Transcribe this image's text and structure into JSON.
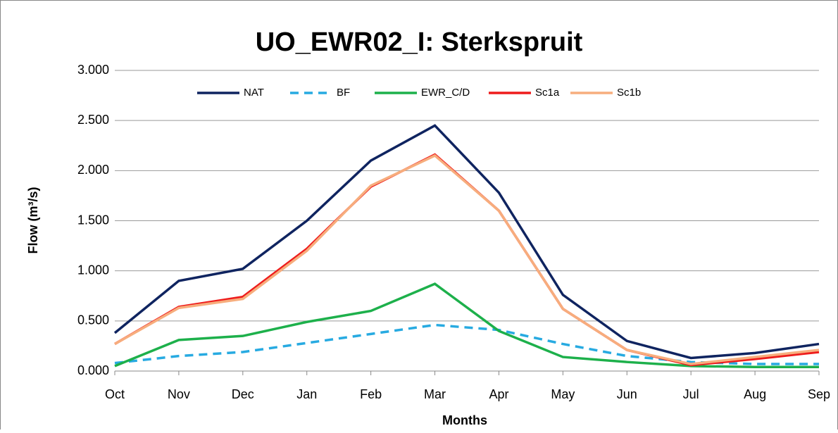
{
  "chart_data": {
    "type": "line",
    "title": "UO_EWR02_I: Sterkspruit",
    "x_label": "Months",
    "y_label": "Flow (m³/s)",
    "categories": [
      "Oct",
      "Nov",
      "Dec",
      "Jan",
      "Feb",
      "Mar",
      "Apr",
      "May",
      "Jun",
      "Jul",
      "Aug",
      "Sep"
    ],
    "series": [
      {
        "name": "NAT",
        "color": "#0f2460",
        "dash": false,
        "values": [
          0.38,
          0.9,
          1.02,
          1.5,
          2.1,
          2.45,
          1.78,
          0.76,
          0.3,
          0.13,
          0.18,
          0.27
        ]
      },
      {
        "name": "BF",
        "color": "#27aae1",
        "dash": true,
        "values": [
          0.08,
          0.15,
          0.19,
          0.28,
          0.37,
          0.46,
          0.41,
          0.27,
          0.15,
          0.09,
          0.07,
          0.07
        ]
      },
      {
        "name": "EWR_C/D",
        "color": "#1db04b",
        "dash": false,
        "values": [
          0.05,
          0.31,
          0.35,
          0.49,
          0.6,
          0.87,
          0.4,
          0.14,
          0.09,
          0.05,
          0.04,
          0.04
        ]
      },
      {
        "name": "Sc1a",
        "color": "#ee1c1c",
        "dash": false,
        "values": [
          0.27,
          0.64,
          0.74,
          1.22,
          1.84,
          2.16,
          1.6,
          0.62,
          0.21,
          0.06,
          0.12,
          0.19
        ]
      },
      {
        "name": "Sc1b",
        "color": "#f7ad7d",
        "dash": false,
        "values": [
          0.27,
          0.63,
          0.72,
          1.2,
          1.85,
          2.15,
          1.6,
          0.62,
          0.21,
          0.07,
          0.14,
          0.21
        ]
      }
    ],
    "ylim": [
      0,
      3
    ],
    "yticks": [
      {
        "value": 0,
        "label": "0.000"
      },
      {
        "value": 0.5,
        "label": "0.500"
      },
      {
        "value": 1,
        "label": "1.000"
      },
      {
        "value": 1.5,
        "label": "1.500"
      },
      {
        "value": 2,
        "label": "2.000"
      },
      {
        "value": 2.5,
        "label": "2.500"
      },
      {
        "value": 3,
        "label": "3.000"
      }
    ],
    "grid": true,
    "legend": "top"
  }
}
